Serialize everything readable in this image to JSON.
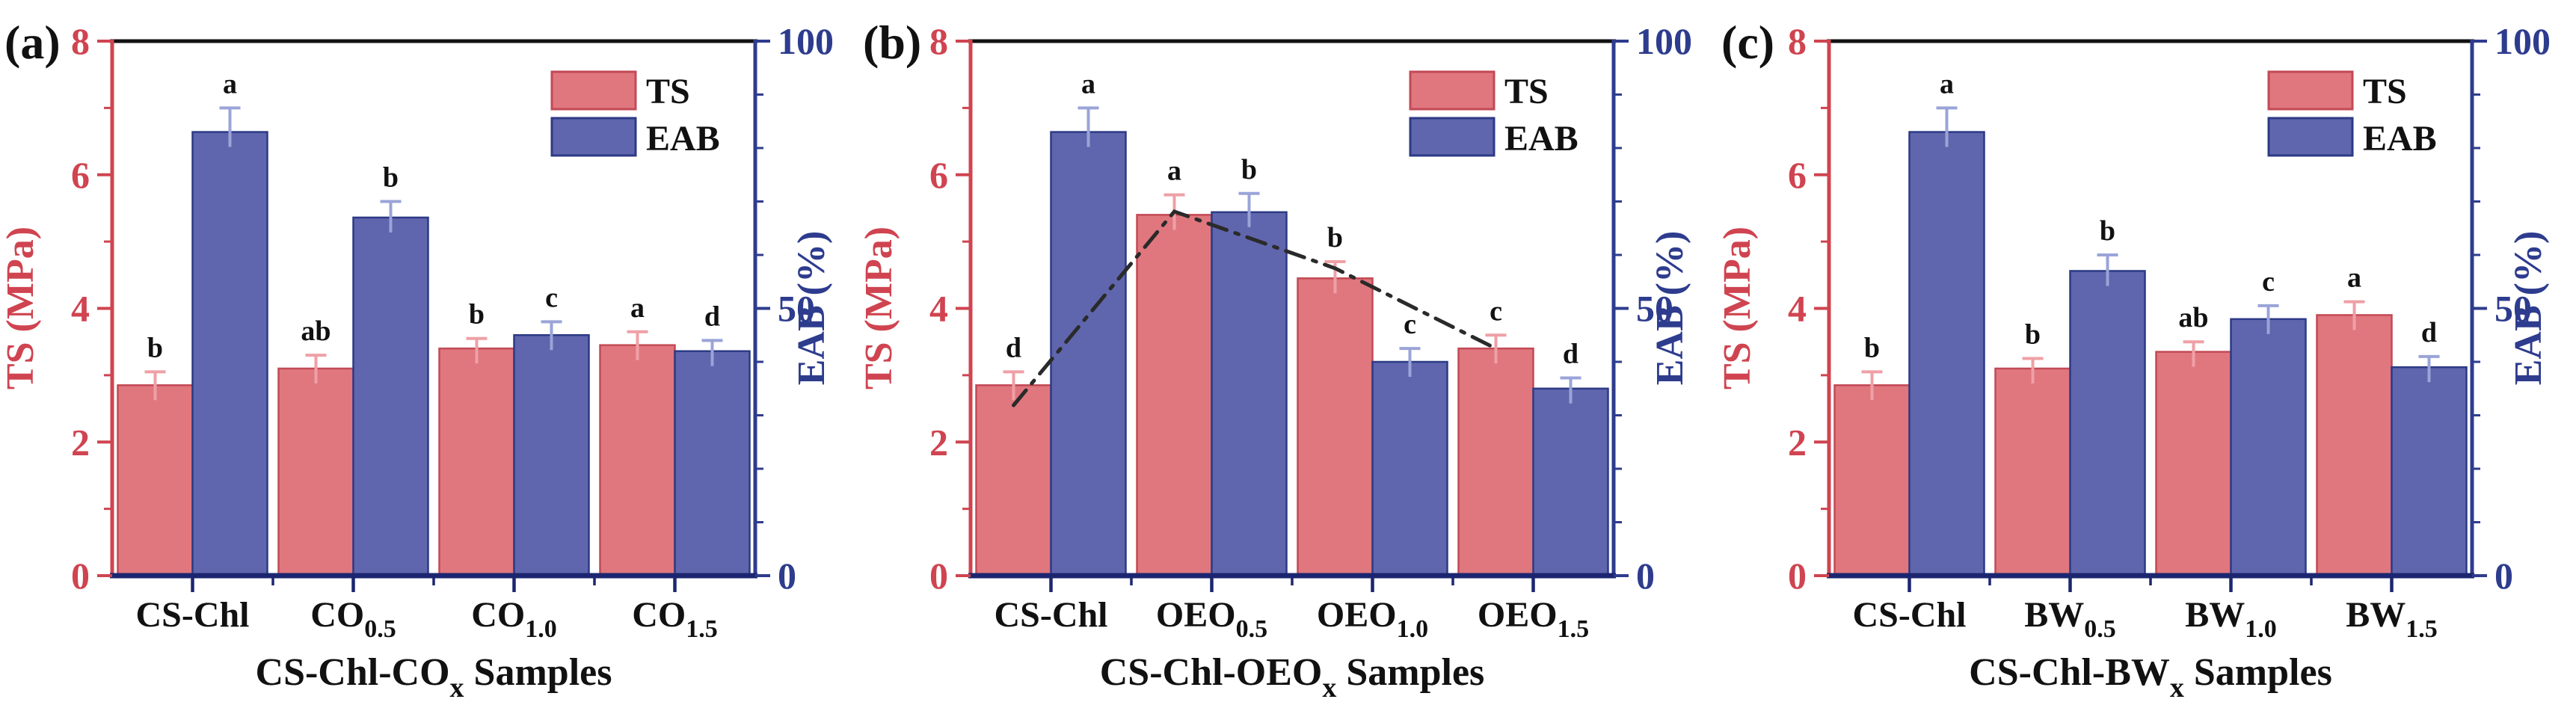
{
  "figure": {
    "description": "Three-panel dual-axis grouped bar figure comparing tensile strength (TS) and elongation at break (EAB) of film samples",
    "panel_labels": [
      "(a)",
      "(b)",
      "(c)"
    ]
  },
  "colors": {
    "ts_fill": "#e0777e",
    "ts_edge": "#c24a55",
    "ts_axis": "#cf4450",
    "ts_error": "#efa0a6",
    "eab_fill": "#5f66ad",
    "eab_edge": "#2c3a85",
    "eab_axis": "#2e3c8e",
    "eab_error": "#9aa4d8",
    "top_border": "#111111",
    "bottom_axis": "#1c2670",
    "text_black": "#111111",
    "trend_line": "#2a2a2a",
    "background": "#ffffff"
  },
  "legend": {
    "ts": "TS",
    "eab": "EAB"
  },
  "axes": {
    "left_title": "TS (MPa)",
    "right_title": "EAB (%)",
    "left_ticks": [
      0,
      2,
      4,
      6,
      8
    ],
    "right_ticks": [
      0,
      50,
      100
    ],
    "left_minor_ticks": [
      1,
      3,
      5,
      7
    ],
    "right_minor_ticks": [
      10,
      20,
      30,
      40,
      60,
      70,
      80,
      90
    ],
    "left_range": [
      0,
      8
    ],
    "right_range": [
      0,
      100
    ]
  },
  "chart_data": [
    {
      "type": "bar",
      "panel_label": "(a)",
      "categories": [
        {
          "main": "CS-Chl",
          "sub": ""
        },
        {
          "main": "CO",
          "sub": "0.5"
        },
        {
          "main": "CO",
          "sub": "1.0"
        },
        {
          "main": "CO",
          "sub": "1.5"
        }
      ],
      "xlabel": {
        "prefix": "CS-Chl-CO",
        "sub": "x",
        "suffix": " Samples"
      },
      "ylabel_left": "TS (MPa)",
      "ylabel_right": "EAB (%)",
      "ylim_left": [
        0,
        8
      ],
      "ylim_right": [
        0,
        100
      ],
      "series": [
        {
          "name": "TS",
          "axis": "left",
          "unit": "MPa",
          "values": [
            2.85,
            3.1,
            3.4,
            3.45
          ],
          "errors": [
            0.2,
            0.2,
            0.15,
            0.2
          ],
          "sig_letters": [
            "b",
            "ab",
            "b",
            "a"
          ]
        },
        {
          "name": "EAB",
          "axis": "right",
          "unit": "%",
          "values": [
            83,
            67,
            45,
            42
          ],
          "errors": [
            4.5,
            3,
            2.5,
            2
          ],
          "sig_letters": [
            "a",
            "b",
            "c",
            "d"
          ]
        }
      ],
      "trend_line": null
    },
    {
      "type": "bar",
      "panel_label": "(b)",
      "categories": [
        {
          "main": "CS-Chl",
          "sub": ""
        },
        {
          "main": "OEO",
          "sub": "0.5"
        },
        {
          "main": "OEO",
          "sub": "1.0"
        },
        {
          "main": "OEO",
          "sub": "1.5"
        }
      ],
      "xlabel": {
        "prefix": "CS-Chl-OEO",
        "sub": "x",
        "suffix": " Samples"
      },
      "ylabel_left": "TS (MPa)",
      "ylabel_right": "EAB (%)",
      "ylim_left": [
        0,
        8
      ],
      "ylim_right": [
        0,
        100
      ],
      "series": [
        {
          "name": "TS",
          "axis": "left",
          "unit": "MPa",
          "values": [
            2.85,
            5.4,
            4.45,
            3.4
          ],
          "errors": [
            0.2,
            0.3,
            0.25,
            0.2
          ],
          "sig_letters": [
            "d",
            "a",
            "b",
            "c"
          ]
        },
        {
          "name": "EAB",
          "axis": "right",
          "unit": "%",
          "values": [
            83,
            68,
            40,
            35
          ],
          "errors": [
            4.5,
            3.5,
            2.5,
            2
          ],
          "sig_letters": [
            "a",
            "b",
            "c",
            "d"
          ]
        }
      ],
      "trend_line": {
        "follows": "TS",
        "style": "dash-dot",
        "values": [
          2.55,
          5.45,
          4.6,
          3.4
        ]
      }
    },
    {
      "type": "bar",
      "panel_label": "(c)",
      "categories": [
        {
          "main": "CS-Chl",
          "sub": ""
        },
        {
          "main": "BW",
          "sub": "0.5"
        },
        {
          "main": "BW",
          "sub": "1.0"
        },
        {
          "main": "BW",
          "sub": "1.5"
        }
      ],
      "xlabel": {
        "prefix": "CS-Chl-BW",
        "sub": "x",
        "suffix": " Samples"
      },
      "ylabel_left": "TS (MPa)",
      "ylabel_right": "EAB (%)",
      "ylim_left": [
        0,
        8
      ],
      "ylim_right": [
        0,
        100
      ],
      "series": [
        {
          "name": "TS",
          "axis": "left",
          "unit": "MPa",
          "values": [
            2.85,
            3.1,
            3.35,
            3.9
          ],
          "errors": [
            0.2,
            0.15,
            0.15,
            0.2
          ],
          "sig_letters": [
            "b",
            "b",
            "ab",
            "a"
          ]
        },
        {
          "name": "EAB",
          "axis": "right",
          "unit": "%",
          "values": [
            83,
            57,
            48,
            39
          ],
          "errors": [
            4.5,
            3,
            2.5,
            2
          ],
          "sig_letters": [
            "a",
            "b",
            "c",
            "d"
          ]
        }
      ],
      "trend_line": null
    }
  ]
}
